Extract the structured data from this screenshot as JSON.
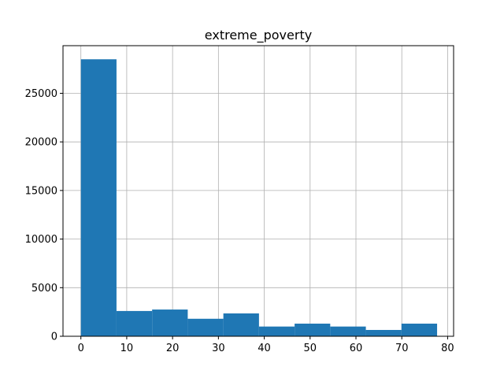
{
  "chart_data": {
    "type": "bar",
    "title": "extreme_poverty",
    "xlabel": "",
    "ylabel": "",
    "bar_color": "#1f77b4",
    "grid": true,
    "xlim": [
      -3.9,
      81.3
    ],
    "ylim": [
      0,
      29900
    ],
    "bins": [
      {
        "x0": 0.0,
        "x1": 7.77,
        "count": 28500
      },
      {
        "x0": 7.77,
        "x1": 15.54,
        "count": 2600
      },
      {
        "x0": 15.54,
        "x1": 23.31,
        "count": 2750
      },
      {
        "x0": 23.31,
        "x1": 31.08,
        "count": 1800
      },
      {
        "x0": 31.08,
        "x1": 38.85,
        "count": 2350
      },
      {
        "x0": 38.85,
        "x1": 46.62,
        "count": 1000
      },
      {
        "x0": 46.62,
        "x1": 54.39,
        "count": 1300
      },
      {
        "x0": 54.39,
        "x1": 62.16,
        "count": 1000
      },
      {
        "x0": 62.16,
        "x1": 69.93,
        "count": 650
      },
      {
        "x0": 69.93,
        "x1": 77.7,
        "count": 1300
      }
    ],
    "x_ticks": [
      {
        "value": 0,
        "label": "0"
      },
      {
        "value": 10,
        "label": "10"
      },
      {
        "value": 20,
        "label": "20"
      },
      {
        "value": 30,
        "label": "30"
      },
      {
        "value": 40,
        "label": "40"
      },
      {
        "value": 50,
        "label": "50"
      },
      {
        "value": 60,
        "label": "60"
      },
      {
        "value": 70,
        "label": "70"
      },
      {
        "value": 80,
        "label": "80"
      }
    ],
    "y_ticks": [
      {
        "value": 0,
        "label": "0"
      },
      {
        "value": 5000,
        "label": "5000"
      },
      {
        "value": 10000,
        "label": "10000"
      },
      {
        "value": 15000,
        "label": "15000"
      },
      {
        "value": 20000,
        "label": "20000"
      },
      {
        "value": 25000,
        "label": "25000"
      }
    ]
  }
}
